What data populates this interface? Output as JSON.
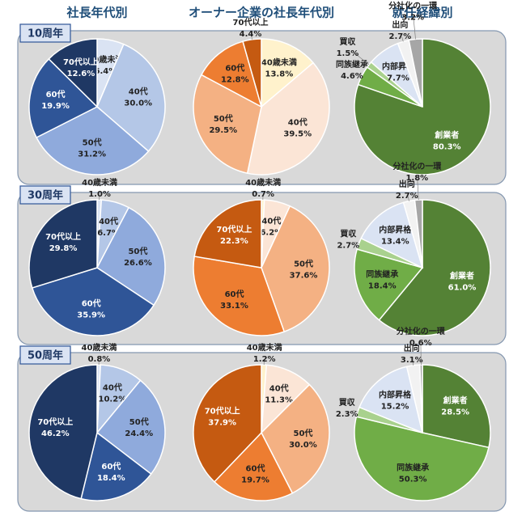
{
  "column_titles": [
    "社長年代別",
    "オーナー企業の社長年代別",
    "就任経緯別"
  ],
  "row_labels": [
    "10周年",
    "30周年",
    "50周年"
  ],
  "chart_data": [
    {
      "type": "pie",
      "categories": [
        "40歳未満",
        "40代",
        "50代",
        "60代",
        "70代以上"
      ],
      "values": [
        6.4,
        30.0,
        31.2,
        19.9,
        12.6
      ],
      "value_labels": [
        "6.4%",
        "30.0%",
        "31.2%",
        "19.9%",
        "12.6%"
      ],
      "colors": [
        "#dae3f3",
        "#b4c7e7",
        "#8faadc",
        "#2f5597",
        "#1f3864"
      ]
    },
    {
      "type": "pie",
      "categories": [
        "40歳未満",
        "40代",
        "50代",
        "60代",
        "70代以上"
      ],
      "values": [
        13.8,
        39.5,
        29.5,
        12.8,
        4.4
      ],
      "value_labels": [
        "13.8%",
        "39.5%",
        "29.5%",
        "12.8%",
        "4.4%"
      ],
      "colors": [
        "#fff2cc",
        "#fbe5d6",
        "#f4b183",
        "#ed7d31",
        "#c55a11"
      ]
    },
    {
      "type": "pie",
      "categories": [
        "創業者",
        "同族継承",
        "買収",
        "内部昇格",
        "出向",
        "分社化の一環"
      ],
      "values": [
        80.3,
        4.6,
        1.5,
        7.7,
        2.7,
        3.2
      ],
      "value_labels": [
        "80.3%",
        "4.6%",
        "1.5%",
        "7.7%",
        "2.7%",
        "3.2%"
      ],
      "colors": [
        "#548235",
        "#70ad47",
        "#a9d18e",
        "#dae3f3",
        "#f2f2f2",
        "#a6a6a6"
      ]
    },
    {
      "type": "pie",
      "categories": [
        "40歳未満",
        "40代",
        "50代",
        "60代",
        "70代以上"
      ],
      "values": [
        1.0,
        6.7,
        26.6,
        35.9,
        29.8
      ],
      "value_labels": [
        "1.0%",
        "6.7%",
        "26.6%",
        "35.9%",
        "29.8%"
      ],
      "colors": [
        "#dae3f3",
        "#b4c7e7",
        "#8faadc",
        "#2f5597",
        "#1f3864"
      ]
    },
    {
      "type": "pie",
      "categories": [
        "40歳未満",
        "40代",
        "50代",
        "60代",
        "70代以上"
      ],
      "values": [
        0.7,
        6.2,
        37.6,
        33.1,
        22.3
      ],
      "value_labels": [
        "0.7%",
        "6.2%",
        "37.6%",
        "33.1%",
        "22.3%"
      ],
      "colors": [
        "#fff2cc",
        "#fbe5d6",
        "#f4b183",
        "#ed7d31",
        "#c55a11"
      ]
    },
    {
      "type": "pie",
      "categories": [
        "創業者",
        "同族継承",
        "買収",
        "内部昇格",
        "出向",
        "分社化の一環"
      ],
      "values": [
        61.0,
        18.4,
        2.7,
        13.4,
        2.7,
        1.8
      ],
      "value_labels": [
        "61.0%",
        "18.4%",
        "2.7%",
        "13.4%",
        "2.7%",
        "1.8%"
      ],
      "colors": [
        "#548235",
        "#70ad47",
        "#a9d18e",
        "#dae3f3",
        "#f2f2f2",
        "#a6a6a6"
      ]
    },
    {
      "type": "pie",
      "categories": [
        "40歳未満",
        "40代",
        "50代",
        "60代",
        "70代以上"
      ],
      "values": [
        0.8,
        10.2,
        24.4,
        18.4,
        46.2
      ],
      "value_labels": [
        "0.8%",
        "10.2%",
        "24.4%",
        "18.4%",
        "46.2%"
      ],
      "colors": [
        "#dae3f3",
        "#b4c7e7",
        "#8faadc",
        "#2f5597",
        "#1f3864"
      ]
    },
    {
      "type": "pie",
      "categories": [
        "40歳未満",
        "40代",
        "50代",
        "60代",
        "70代以上"
      ],
      "values": [
        1.2,
        11.3,
        30.0,
        19.7,
        37.9
      ],
      "value_labels": [
        "1.2%",
        "11.3%",
        "30.0%",
        "19.7%",
        "37.9%"
      ],
      "colors": [
        "#fff2cc",
        "#fbe5d6",
        "#f4b183",
        "#ed7d31",
        "#c55a11"
      ]
    },
    {
      "type": "pie",
      "categories": [
        "創業者",
        "同族継承",
        "買収",
        "内部昇格",
        "出向",
        "分社化の一環"
      ],
      "values": [
        28.5,
        50.3,
        2.3,
        15.2,
        3.1,
        0.6
      ],
      "value_labels": [
        "28.5%",
        "50.3%",
        "2.3%",
        "15.2%",
        "3.1%",
        "0.6%"
      ],
      "colors": [
        "#548235",
        "#70ad47",
        "#a9d18e",
        "#dae3f3",
        "#f2f2f2",
        "#a6a6a6"
      ]
    }
  ]
}
